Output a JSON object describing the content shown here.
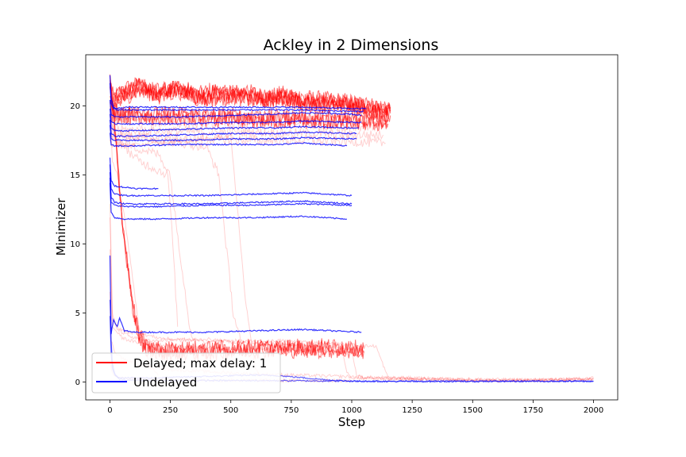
{
  "chart_data": {
    "type": "line",
    "title": "Ackley in 2 Dimensions",
    "xlabel": "Step",
    "ylabel": "Minimizer",
    "xlim": [
      -100,
      2100
    ],
    "ylim": [
      -1.3,
      23.7
    ],
    "xticks": [
      0,
      250,
      500,
      750,
      1000,
      1250,
      1500,
      1750,
      2000
    ],
    "yticks": [
      0,
      5,
      10,
      15,
      20
    ],
    "grid": false,
    "legend_position": "lower-left",
    "colors": {
      "delayed": "#ff0000",
      "undelayed": "#0000ff"
    },
    "series": [
      {
        "name": "Delayed; max delay: 1",
        "color": "#ff0000",
        "runs": [
          {
            "x": [
              0,
              5,
              15,
              40,
              80,
              120,
              160,
              200,
              260,
              300,
              360,
              420,
              480,
              560,
              640,
              720,
              800,
              880,
              960,
              1040,
              1100,
              1160
            ],
            "y": [
              22.0,
              21.2,
              20.6,
              21.0,
              21.4,
              21.6,
              21.2,
              20.9,
              21.5,
              21.3,
              20.8,
              21.2,
              20.9,
              21.1,
              20.7,
              20.9,
              20.6,
              20.5,
              20.4,
              20.2,
              20.0,
              19.9
            ]
          },
          {
            "x": [
              0,
              5,
              15,
              60,
              120,
              200,
              300,
              400,
              500,
              600,
              700,
              800,
              900,
              1000,
              1100,
              1160
            ],
            "y": [
              21.5,
              20.6,
              20.3,
              20.9,
              21.4,
              21.1,
              21.3,
              20.7,
              21.0,
              20.6,
              20.8,
              20.4,
              20.3,
              20.1,
              19.8,
              19.6
            ]
          },
          {
            "x": [
              0,
              10,
              100,
              200,
              300,
              400,
              500,
              600,
              700,
              800,
              900,
              1000,
              1100,
              1150
            ],
            "y": [
              20.5,
              19.6,
              19.5,
              19.4,
              19.4,
              19.3,
              19.3,
              19.2,
              19.2,
              19.2,
              19.1,
              19.1,
              19.0,
              19.0
            ]
          },
          {
            "x": [
              0,
              10,
              200,
              400,
              600,
              800,
              1000,
              1150
            ],
            "y": [
              19.5,
              18.9,
              18.8,
              18.7,
              18.7,
              18.6,
              18.5,
              18.5
            ]
          },
          {
            "x": [
              0,
              10,
              200,
              400,
              600,
              800,
              1000,
              1130
            ],
            "y": [
              19.0,
              18.3,
              18.2,
              18.1,
              18.1,
              18.0,
              17.9,
              17.9
            ]
          },
          {
            "x": [
              0,
              10,
              200,
              400,
              600,
              800,
              1000,
              1140
            ],
            "y": [
              18.5,
              17.8,
              17.7,
              17.6,
              17.5,
              17.5,
              17.4,
              17.3
            ]
          },
          {
            "x": [
              0,
              10,
              100,
              200,
              300,
              400,
              500,
              530,
              560,
              600,
              620
            ],
            "y": [
              17.6,
              17.1,
              17.2,
              17.3,
              17.4,
              17.6,
              17.8,
              12.0,
              6.0,
              1.0,
              0.4
            ]
          },
          {
            "x": [
              0,
              10,
              50,
              90,
              120,
              150,
              200,
              300,
              400,
              500,
              600,
              700,
              800,
              900,
              1000,
              1050
            ],
            "y": [
              22.0,
              20.5,
              12.0,
              6.0,
              3.5,
              2.6,
              2.4,
              2.4,
              2.4,
              2.5,
              2.6,
              2.6,
              2.6,
              2.6,
              2.5,
              2.4
            ]
          },
          {
            "x": [
              0,
              10,
              30,
              60,
              100,
              150,
              200,
              300,
              400,
              500,
              600,
              700,
              800,
              900,
              1000,
              1050,
              1100,
              1150,
              1200,
              1250,
              1300,
              1400,
              1500,
              1600,
              1700,
              1800,
              1900,
              2000
            ],
            "y": [
              13.0,
              5.0,
              3.8,
              3.5,
              3.2,
              3.0,
              3.0,
              3.1,
              2.9,
              3.0,
              2.9,
              3.0,
              2.9,
              2.8,
              2.7,
              2.6,
              2.6,
              0.3,
              0.3,
              0.28,
              0.25,
              0.2,
              0.15,
              0.1,
              0.1,
              0.12,
              0.15,
              0.2
            ]
          },
          {
            "x": [
              0,
              10,
              40,
              80,
              150,
              200,
              300,
              400,
              500,
              600,
              700,
              800,
              900,
              1000,
              1020,
              1050,
              1100,
              1200,
              1400,
              1600,
              1800,
              2000
            ],
            "y": [
              12.0,
              4.5,
              3.8,
              3.6,
              3.4,
              3.2,
              3.0,
              3.1,
              2.9,
              2.8,
              2.7,
              2.6,
              2.5,
              2.4,
              0.5,
              0.3,
              0.25,
              0.2,
              0.15,
              0.12,
              0.15,
              0.25
            ]
          },
          {
            "x": [
              0,
              10,
              50,
              100,
              200,
              300,
              400,
              500,
              600,
              700,
              800,
              900,
              960,
              980,
              1000,
              1200,
              1400,
              1600,
              1800,
              2000
            ],
            "y": [
              9.5,
              4.0,
              3.2,
              2.9,
              2.7,
              2.6,
              2.5,
              2.4,
              2.4,
              2.3,
              2.3,
              2.2,
              2.2,
              0.8,
              0.3,
              0.2,
              0.12,
              0.08,
              0.1,
              0.3
            ]
          },
          {
            "x": [
              0,
              5,
              20,
              60,
              150,
              250,
              350,
              450,
              550,
              650,
              750,
              850,
              950,
              1050,
              1150,
              1300,
              1500,
              1700,
              1900,
              2000
            ],
            "y": [
              6.5,
              3.0,
              2.2,
              1.6,
              1.1,
              0.9,
              0.8,
              0.7,
              0.6,
              0.55,
              0.5,
              0.45,
              0.4,
              0.35,
              0.3,
              0.25,
              0.2,
              0.15,
              0.15,
              0.2
            ]
          },
          {
            "x": [
              0,
              10,
              30,
              60,
              90,
              120,
              150,
              170,
              200
            ],
            "y": [
              20.0,
              16.0,
              15.0,
              12.0,
              8.0,
              4.0,
              2.0,
              1.0,
              0.5
            ]
          },
          {
            "x": [
              0,
              15,
              100,
              200,
              250,
              270,
              300,
              330,
              360
            ],
            "y": [
              19.0,
              17.5,
              17.0,
              16.5,
              15.0,
              12.0,
              8.0,
              4.0,
              2.5
            ]
          },
          {
            "x": [
              0,
              20,
              100,
              200,
              300,
              400,
              450,
              480,
              510,
              540
            ],
            "y": [
              19.5,
              18.0,
              17.8,
              17.5,
              17.3,
              17.0,
              15.0,
              10.0,
              5.0,
              3.0
            ]
          },
          {
            "x": [
              0,
              10,
              60,
              120,
              180,
              240,
              260,
              280
            ],
            "y": [
              20.5,
              18.0,
              17.0,
              16.0,
              15.5,
              15.0,
              10.0,
              4.0
            ]
          },
          {
            "x": [
              0,
              10,
              30,
              60,
              100,
              160,
              220,
              280,
              340,
              400,
              500,
              600,
              700,
              800,
              900,
              1000
            ],
            "y": [
              1.5,
              0.6,
              0.4,
              0.3,
              0.25,
              0.2,
              0.18,
              0.15,
              0.14,
              0.13,
              0.12,
              0.11,
              0.1,
              0.1,
              0.1,
              0.1
            ]
          }
        ]
      },
      {
        "name": "Undelayed",
        "color": "#0000ff",
        "runs": [
          {
            "x": [
              0,
              5,
              15,
              30,
              60,
              100,
              200,
              400,
              600,
              800,
              1000,
              1060
            ],
            "y": [
              22.2,
              20.5,
              19.9,
              19.8,
              19.9,
              19.9,
              19.9,
              19.9,
              19.9,
              19.9,
              19.8,
              19.8
            ]
          },
          {
            "x": [
              0,
              5,
              15,
              30,
              100,
              200,
              400,
              600,
              800,
              1000,
              1050
            ],
            "y": [
              21.6,
              20.2,
              19.8,
              19.7,
              19.7,
              19.7,
              19.7,
              19.7,
              19.7,
              19.6,
              19.6
            ]
          },
          {
            "x": [
              0,
              5,
              20,
              100,
              300,
              500,
              700,
              800,
              1000,
              1040
            ],
            "y": [
              20.4,
              19.4,
              19.2,
              19.2,
              19.2,
              19.3,
              19.4,
              19.5,
              19.4,
              19.3
            ]
          },
          {
            "x": [
              0,
              5,
              20,
              100,
              300,
              500,
              700,
              800,
              1000,
              1040
            ],
            "y": [
              19.8,
              18.9,
              18.7,
              18.7,
              18.7,
              18.8,
              18.8,
              18.9,
              18.8,
              18.8
            ]
          },
          {
            "x": [
              0,
              5,
              20,
              100,
              300,
              500,
              700,
              800,
              1000,
              1030
            ],
            "y": [
              19.4,
              18.4,
              18.2,
              18.2,
              18.3,
              18.4,
              18.4,
              18.5,
              18.4,
              18.4
            ]
          },
          {
            "x": [
              0,
              5,
              20,
              100,
              300,
              500,
              700,
              800,
              1000,
              1020
            ],
            "y": [
              19.0,
              18.0,
              17.8,
              17.8,
              17.9,
              18.0,
              18.0,
              18.1,
              18.0,
              18.0
            ]
          },
          {
            "x": [
              0,
              5,
              20,
              100,
              300,
              500,
              700,
              800,
              1000,
              1020
            ],
            "y": [
              18.6,
              17.6,
              17.5,
              17.5,
              17.5,
              17.6,
              17.6,
              17.7,
              17.6,
              17.6
            ]
          },
          {
            "x": [
              0,
              5,
              20,
              100,
              300,
              500,
              700,
              800,
              980
            ],
            "y": [
              18.0,
              17.2,
              17.1,
              17.1,
              17.2,
              17.2,
              17.2,
              17.3,
              17.1
            ]
          },
          {
            "x": [
              0,
              5,
              20,
              60,
              120,
              200
            ],
            "y": [
              16.2,
              14.6,
              14.2,
              14.1,
              14.0,
              14.0
            ]
          },
          {
            "x": [
              0,
              5,
              20,
              60,
              200,
              400,
              600,
              800,
              1000
            ],
            "y": [
              15.8,
              14.0,
              13.6,
              13.5,
              13.5,
              13.5,
              13.6,
              13.7,
              13.5
            ]
          },
          {
            "x": [
              0,
              5,
              20,
              60,
              200,
              400,
              600,
              800,
              1000
            ],
            "y": [
              15.2,
              13.4,
              13.0,
              12.9,
              12.9,
              12.9,
              13.0,
              13.1,
              12.9
            ]
          },
          {
            "x": [
              0,
              5,
              20,
              60,
              200,
              400,
              600,
              800,
              1000
            ],
            "y": [
              14.8,
              13.0,
              12.8,
              12.7,
              12.7,
              12.8,
              12.8,
              12.9,
              12.8
            ]
          },
          {
            "x": [
              0,
              5,
              20,
              60,
              200,
              400,
              600,
              800,
              980
            ],
            "y": [
              14.4,
              12.3,
              11.9,
              11.8,
              11.8,
              11.9,
              11.9,
              12.0,
              11.8
            ]
          },
          {
            "x": [
              0,
              5,
              15,
              30,
              40,
              60,
              100,
              200,
              400,
              600,
              800,
              1040
            ],
            "y": [
              9.2,
              3.5,
              4.5,
              4.0,
              4.6,
              3.7,
              3.6,
              3.6,
              3.6,
              3.7,
              3.8,
              3.6
            ]
          },
          {
            "x": [
              0,
              5,
              10,
              20,
              30,
              60,
              100,
              200,
              300,
              400,
              500,
              600,
              700,
              800,
              900,
              1000,
              1200,
              1400,
              1600,
              1800,
              2000
            ],
            "y": [
              6.0,
              3.0,
              1.4,
              0.6,
              0.35,
              0.3,
              0.28,
              0.3,
              0.35,
              0.4,
              0.45,
              0.5,
              0.45,
              0.3,
              0.15,
              0.05,
              0.03,
              0.03,
              0.04,
              0.05,
              0.05
            ]
          },
          {
            "x": [
              0,
              5,
              10,
              20,
              40,
              80,
              200,
              400,
              600,
              800,
              1000,
              2000
            ],
            "y": [
              4.8,
              2.0,
              1.0,
              0.5,
              0.2,
              0.12,
              0.1,
              0.1,
              0.1,
              0.08,
              0.06,
              0.05
            ]
          }
        ]
      }
    ]
  }
}
